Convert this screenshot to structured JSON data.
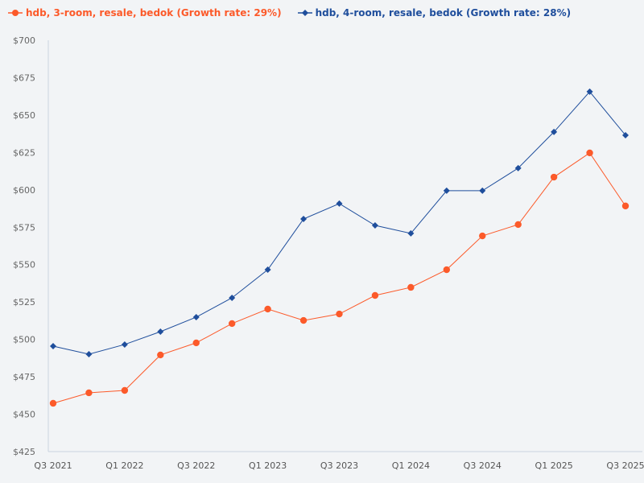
{
  "chart_data": {
    "type": "line",
    "title": "",
    "xlabel": "",
    "ylabel": "",
    "x": [
      "Q3 2021",
      "Q4 2021",
      "Q1 2022",
      "Q2 2022",
      "Q3 2022",
      "Q4 2022",
      "Q1 2023",
      "Q2 2023",
      "Q3 2023",
      "Q4 2023",
      "Q1 2024",
      "Q2 2024",
      "Q3 2024",
      "Q4 2024",
      "Q1 2025",
      "Q2 2025",
      "Q3 2025"
    ],
    "x_tick_labels": [
      "Q3 2021",
      "Q1 2022",
      "Q3 2022",
      "Q1 2023",
      "Q3 2023",
      "Q1 2024",
      "Q3 2024",
      "Q1 2025",
      "Q3 2025"
    ],
    "ylim": [
      425,
      700
    ],
    "y_ticks": [
      425,
      450,
      475,
      500,
      525,
      550,
      575,
      600,
      625,
      650,
      675,
      700
    ],
    "y_tick_labels": [
      "$425",
      "$450",
      "$475",
      "$500",
      "$525",
      "$550",
      "$575",
      "$600",
      "$625",
      "$650",
      "$675",
      "$700"
    ],
    "legend_position": "top-left",
    "grid": false,
    "series": [
      {
        "name": "hdb, 3-room, resale, bedok (Growth rate: 29%)",
        "color": "#fc5a2a",
        "marker": "circle",
        "values": [
          457.3,
          464.3,
          465.9,
          489.6,
          497.7,
          510.6,
          520.3,
          512.7,
          517.0,
          529.4,
          534.8,
          546.6,
          569.2,
          576.8,
          608.5,
          624.7,
          589.2
        ]
      },
      {
        "name": "hdb, 4-room, resale, bedok (Growth rate: 28%)",
        "color": "#1f4e9c",
        "marker": "diamond",
        "values": [
          495.5,
          490.1,
          496.6,
          505.2,
          514.9,
          527.8,
          546.6,
          580.5,
          590.8,
          576.2,
          570.9,
          599.4,
          599.4,
          614.5,
          638.7,
          665.6,
          636.5
        ]
      }
    ]
  }
}
